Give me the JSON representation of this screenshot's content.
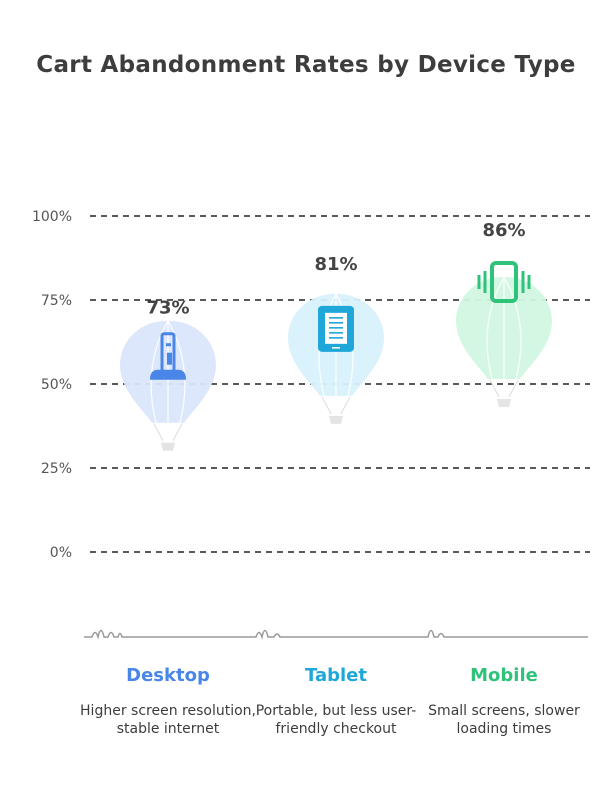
{
  "chart_data": {
    "type": "bar",
    "title": "Cart Abandonment Rates by Device Type",
    "categories": [
      "Desktop",
      "Tablet",
      "Mobile"
    ],
    "values": [
      73,
      81,
      86
    ],
    "value_labels": [
      "73%",
      "81%",
      "86%"
    ],
    "descriptions": [
      "Higher screen resolution, stable internet",
      "Portable, but less user-friendly checkout",
      "Small screens, slower loading times"
    ],
    "icons": [
      "desktop-tower-icon",
      "tablet-icon",
      "mobile-vibrate-icon"
    ],
    "colors": [
      "#4a86e8",
      "#1ea7d8",
      "#2fc27a"
    ],
    "fill_colors": [
      "#dbe6fb",
      "#d8f1fb",
      "#d2f7e3"
    ],
    "yticks": [
      0,
      25,
      50,
      75,
      100
    ],
    "ytick_labels": [
      "0%",
      "25%",
      "50%",
      "75%",
      "100%"
    ],
    "ylim": [
      0,
      100
    ],
    "grid": true,
    "xlabel": "",
    "ylabel": ""
  }
}
